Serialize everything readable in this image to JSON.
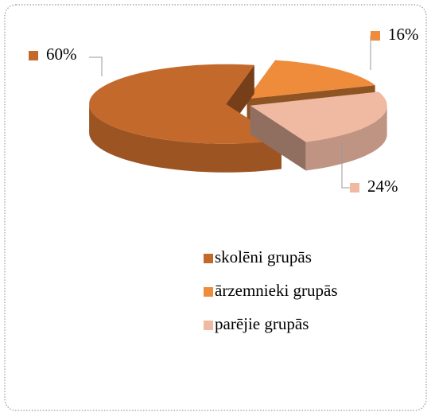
{
  "chart_data": {
    "type": "pie",
    "categories": [
      "skolēni grupās",
      "ārzemnieki grupās",
      "parējie grupās"
    ],
    "values": [
      60,
      16,
      24
    ],
    "value_labels": [
      "60%",
      "16%",
      "24%"
    ],
    "colors": [
      "#c4692c",
      "#ee8c3c",
      "#f0b9a2"
    ],
    "legend": "bottom"
  }
}
